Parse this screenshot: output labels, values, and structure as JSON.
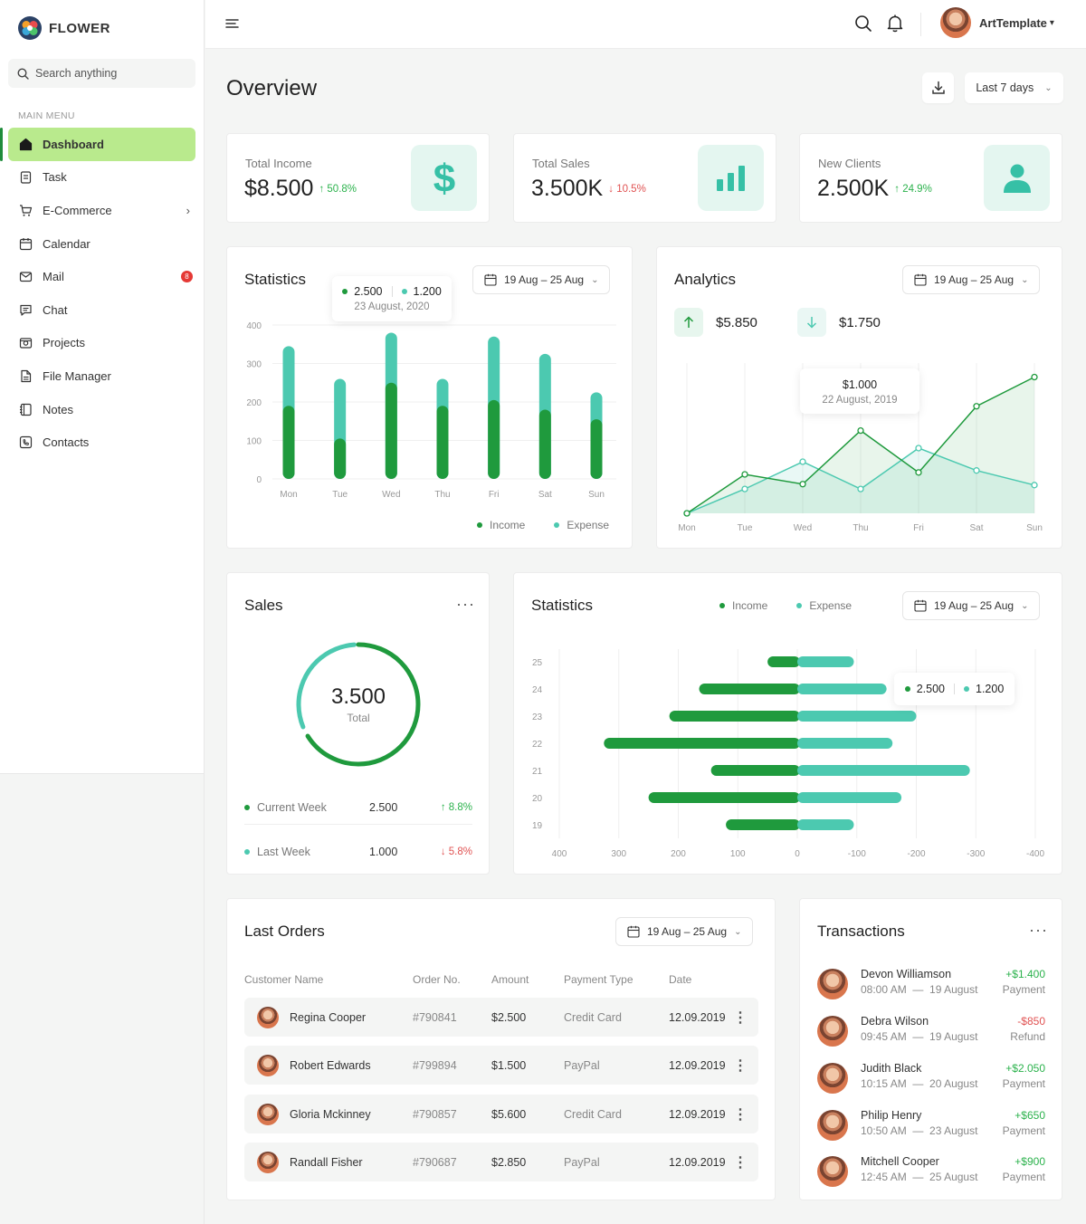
{
  "brand": {
    "name": "FLOWER"
  },
  "search": {
    "placeholder": "Search anything"
  },
  "sidebar": {
    "menu_title": "MAIN MENU",
    "items": [
      {
        "label": "Dashboard",
        "icon": "home-icon",
        "active": true
      },
      {
        "label": "Task",
        "icon": "clipboard-icon"
      },
      {
        "label": "E-Commerce",
        "icon": "cart-icon",
        "chevron": true
      },
      {
        "label": "Calendar",
        "icon": "calendar-icon"
      },
      {
        "label": "Mail",
        "icon": "mail-icon",
        "badge": "8"
      },
      {
        "label": "Chat",
        "icon": "chat-icon"
      },
      {
        "label": "Projects",
        "icon": "projects-icon"
      },
      {
        "label": "File Manager",
        "icon": "file-icon"
      },
      {
        "label": "Notes",
        "icon": "notes-icon"
      },
      {
        "label": "Contacts",
        "icon": "contacts-icon"
      }
    ]
  },
  "header": {
    "user_name": "ArtTemplate",
    "user_caret": "▾"
  },
  "page": {
    "title": "Overview",
    "range_label": "Last 7 days"
  },
  "kpis": [
    {
      "label": "Total Income",
      "value": "$8.500",
      "change": "↑ 50.8%",
      "trend": "up",
      "icon": "dollar-icon"
    },
    {
      "label": "Total Sales",
      "value": "3.500K",
      "change": "↓ 10.5%",
      "trend": "down",
      "icon": "bar-chart-icon"
    },
    {
      "label": "New Clients",
      "value": "2.500K",
      "change": "↑ 24.9%",
      "trend": "up",
      "icon": "user-icon"
    }
  ],
  "date_range": "19 Aug – 25 Aug",
  "statistics": {
    "title": "Statistics",
    "tooltip": {
      "income": "2.500",
      "expense": "1.200",
      "date": "23 August, 2020"
    },
    "legend": {
      "income": "Income",
      "expense": "Expense"
    }
  },
  "analytics": {
    "title": "Analytics",
    "up_value": "$5.850",
    "down_value": "$1.750",
    "tooltip": {
      "value": "$1.000",
      "date": "22 August, 2019"
    }
  },
  "sales": {
    "title": "Sales",
    "total_value": "3.500",
    "total_label": "Total",
    "progress_fraction": 0.68,
    "current": {
      "label": "Current Week",
      "value": "2.500",
      "change": "↑ 8.8%"
    },
    "last": {
      "label": "Last Week",
      "value": "1.000",
      "change": "↓ 5.8%"
    }
  },
  "statistics2": {
    "title": "Statistics",
    "legend": {
      "income": "Income",
      "expense": "Expense"
    },
    "tooltip": {
      "income": "2.500",
      "expense": "1.200"
    }
  },
  "orders": {
    "title": "Last Orders",
    "columns": [
      "Customer Name",
      "Order No.",
      "Amount",
      "Payment Type",
      "Date"
    ],
    "rows": [
      {
        "name": "Regina Cooper",
        "no": "#790841",
        "amount": "$2.500",
        "payment": "Credit Card",
        "date": "12.09.2019"
      },
      {
        "name": "Robert Edwards",
        "no": "#799894",
        "amount": "$1.500",
        "payment": "PayPal",
        "date": "12.09.2019"
      },
      {
        "name": "Gloria Mckinney",
        "no": "#790857",
        "amount": "$5.600",
        "payment": "Credit Card",
        "date": "12.09.2019"
      },
      {
        "name": "Randall Fisher",
        "no": "#790687",
        "amount": "$2.850",
        "payment": "PayPal",
        "date": "12.09.2019"
      }
    ]
  },
  "transactions": {
    "title": "Transactions",
    "items": [
      {
        "name": "Devon Williamson",
        "time": "08:00 AM",
        "date": "19 August",
        "amount": "+$1.400",
        "type": "Payment",
        "positive": true
      },
      {
        "name": "Debra Wilson",
        "time": "09:45 AM",
        "date": "19 August",
        "amount": "-$850",
        "type": "Refund",
        "positive": false
      },
      {
        "name": "Judith Black",
        "time": "10:15 AM",
        "date": "20 August",
        "amount": "+$2.050",
        "type": "Payment",
        "positive": true
      },
      {
        "name": "Philip Henry",
        "time": "10:50 AM",
        "date": "23 August",
        "amount": "+$650",
        "type": "Payment",
        "positive": true
      },
      {
        "name": "Mitchell Cooper",
        "time": "12:45 AM",
        "date": "25 August",
        "amount": "+$900",
        "type": "Payment",
        "positive": true
      }
    ]
  },
  "colors": {
    "income": "#1f9a3d",
    "expense": "#4cc9b0",
    "active_menu": "#b9ea8d",
    "up": "#2bb24c",
    "down": "#e05252"
  },
  "chart_data": [
    {
      "type": "bar",
      "title": "Statistics",
      "categories": [
        "Mon",
        "Tue",
        "Wed",
        "Thu",
        "Fri",
        "Sat",
        "Sun"
      ],
      "series": [
        {
          "name": "Income",
          "values": [
            190,
            105,
            250,
            190,
            205,
            180,
            155
          ]
        },
        {
          "name": "Expense",
          "values": [
            345,
            260,
            380,
            260,
            370,
            325,
            225
          ]
        }
      ],
      "ylim": [
        0,
        400
      ],
      "yticks": [
        0,
        100,
        200,
        300,
        400
      ],
      "stacking": "overlay",
      "grid": true,
      "legend": "bottom-right"
    },
    {
      "type": "line",
      "title": "Analytics",
      "categories": [
        "Mon",
        "Tue",
        "Wed",
        "Thu",
        "Fri",
        "Sat",
        "Sun"
      ],
      "series": [
        {
          "name": "Income",
          "values": [
            0,
            400,
            300,
            850,
            420,
            1100,
            1400
          ]
        },
        {
          "name": "Expense",
          "values": [
            0,
            250,
            530,
            250,
            670,
            440,
            290
          ]
        }
      ],
      "ylim": [
        0,
        1600
      ],
      "grid": true
    },
    {
      "type": "bar",
      "title": "Statistics",
      "orientation": "horizontal",
      "categories": [
        "25",
        "24",
        "23",
        "22",
        "21",
        "20",
        "19"
      ],
      "series": [
        {
          "name": "Income",
          "values": [
            50,
            165,
            215,
            325,
            145,
            250,
            120
          ]
        },
        {
          "name": "Expense",
          "values": [
            95,
            150,
            200,
            160,
            290,
            175,
            95
          ]
        }
      ],
      "xticks": [
        400,
        300,
        200,
        100,
        0,
        -100,
        -200,
        -300,
        -400
      ],
      "xlim": [
        -400,
        400
      ],
      "grid": true,
      "legend": "top"
    }
  ]
}
